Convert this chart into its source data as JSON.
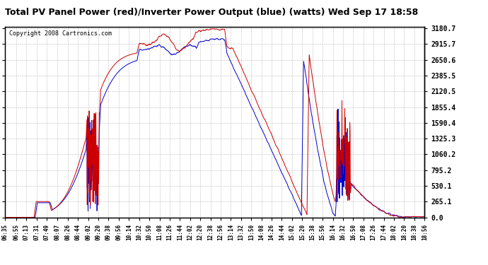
{
  "title": "Total PV Panel Power (red)/Inverter Power Output (blue) (watts) Wed Sep 17 18:58",
  "copyright": "Copyright 2008 Cartronics.com",
  "background_color": "#ffffff",
  "plot_bg_color": "#ffffff",
  "grid_color": "#bbbbbb",
  "line_color_red": "#cc0000",
  "line_color_blue": "#0000cc",
  "yticks": [
    0.0,
    265.1,
    530.1,
    795.2,
    1060.2,
    1325.3,
    1590.4,
    1855.4,
    2120.5,
    2385.5,
    2650.6,
    2915.7,
    3180.7
  ],
  "ymax": 3180.7,
  "ymin": 0.0,
  "xtick_labels": [
    "06:35",
    "06:55",
    "07:13",
    "07:31",
    "07:49",
    "08:07",
    "08:26",
    "08:44",
    "09:02",
    "09:20",
    "09:38",
    "09:56",
    "10:14",
    "10:32",
    "10:50",
    "11:08",
    "11:26",
    "11:44",
    "12:02",
    "12:20",
    "12:38",
    "12:56",
    "13:14",
    "13:32",
    "13:50",
    "14:08",
    "14:26",
    "14:44",
    "15:02",
    "15:20",
    "15:38",
    "15:56",
    "16:14",
    "16:32",
    "16:50",
    "17:08",
    "17:26",
    "17:44",
    "18:02",
    "18:20",
    "18:38",
    "18:56"
  ]
}
